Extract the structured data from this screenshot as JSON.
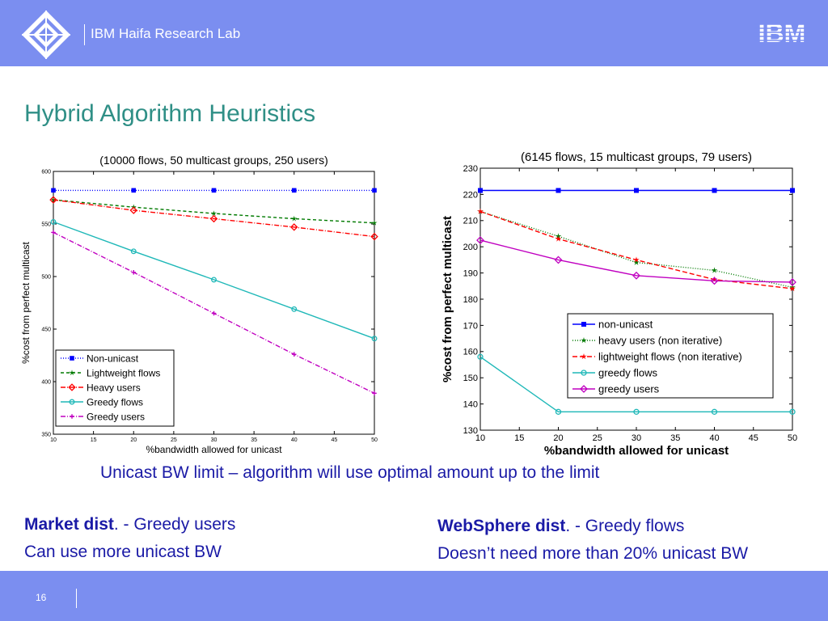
{
  "header": {
    "lab_name": "IBM Haifa Research Lab",
    "logo_text": "IBM",
    "background": "#7b8ef0"
  },
  "slide": {
    "title": "Hybrid Algorithm Heuristics",
    "caption": "Unicast BW limit – algorithm will  use optimal amount up to the limit",
    "left_text": {
      "bold": "Market dist",
      "rest": ". - Greedy users",
      "line2": "Can use more unicast BW"
    },
    "right_text": {
      "bold": "WebSphere dist",
      "rest": ". - Greedy flows",
      "line2": "Doesn’t need more than 20% unicast BW"
    },
    "page_number": "16"
  },
  "chart_data": [
    {
      "type": "line",
      "title": "(10000 flows, 50 multicast groups, 250 users)",
      "xlabel": "%bandwidth allowed for unicast",
      "ylabel": "%cost from perfect multicast",
      "xlim": [
        10,
        50
      ],
      "ylim": [
        350,
        600
      ],
      "xticks": [
        10,
        15,
        20,
        25,
        30,
        35,
        40,
        45,
        50
      ],
      "yticks": [
        350,
        400,
        450,
        500,
        550,
        600
      ],
      "legend_position": "bottom-left",
      "x": [
        10,
        20,
        30,
        40,
        50
      ],
      "series": [
        {
          "name": "Non-unicast",
          "color": "#0000ff",
          "dash": "1,2",
          "marker": "square",
          "values": [
            582,
            582,
            582,
            582,
            582
          ]
        },
        {
          "name": "Lightweight flows",
          "color": "#007a00",
          "dash": "4,3",
          "marker": "star",
          "values": [
            573,
            566,
            560,
            555,
            551
          ]
        },
        {
          "name": "Heavy users",
          "color": "#ff0000",
          "dash": "6,2,1,2",
          "marker": "diamond",
          "values": [
            573,
            563,
            555,
            547,
            538
          ]
        },
        {
          "name": "Greedy flows",
          "color": "#1fb8b8",
          "dash": "",
          "marker": "circle",
          "values": [
            552,
            524,
            497,
            469,
            441
          ]
        },
        {
          "name": "Greedy users",
          "color": "#c000c0",
          "dash": "6,2,1,2",
          "marker": "plus",
          "values": [
            542,
            504,
            465,
            426,
            389
          ]
        }
      ]
    },
    {
      "type": "line",
      "title": "(6145 flows, 15 multicast groups, 79 users)",
      "xlabel": "%bandwidth allowed for unicast",
      "ylabel": "%cost from perfect multicast",
      "xlim": [
        10,
        50
      ],
      "ylim": [
        130,
        230
      ],
      "xticks": [
        10,
        15,
        20,
        25,
        30,
        35,
        40,
        45,
        50
      ],
      "yticks": [
        130,
        140,
        150,
        160,
        170,
        180,
        190,
        200,
        210,
        220,
        230
      ],
      "legend_position": "bottom-right",
      "x": [
        10,
        20,
        30,
        40,
        50
      ],
      "series": [
        {
          "name": "non-unicast",
          "color": "#0000ff",
          "dash": "",
          "marker": "square",
          "values": [
            221.5,
            221.5,
            221.5,
            221.5,
            221.5
          ]
        },
        {
          "name": "heavy users (non iterative)",
          "color": "#007a00",
          "dash": "1,2",
          "marker": "star",
          "values": [
            213.5,
            204,
            194,
            191,
            184.5
          ]
        },
        {
          "name": "lightweight flows (non iterative)",
          "color": "#ff0000",
          "dash": "6,3",
          "marker": "star",
          "values": [
            213.5,
            203,
            195,
            187.5,
            184
          ]
        },
        {
          "name": "greedy flows",
          "color": "#1fb8b8",
          "dash": "",
          "marker": "circle",
          "values": [
            158,
            137,
            137,
            137,
            137
          ]
        },
        {
          "name": "greedy users",
          "color": "#c000c0",
          "dash": "",
          "marker": "diamond",
          "values": [
            202.5,
            195,
            189,
            187,
            186.5
          ]
        }
      ]
    }
  ]
}
